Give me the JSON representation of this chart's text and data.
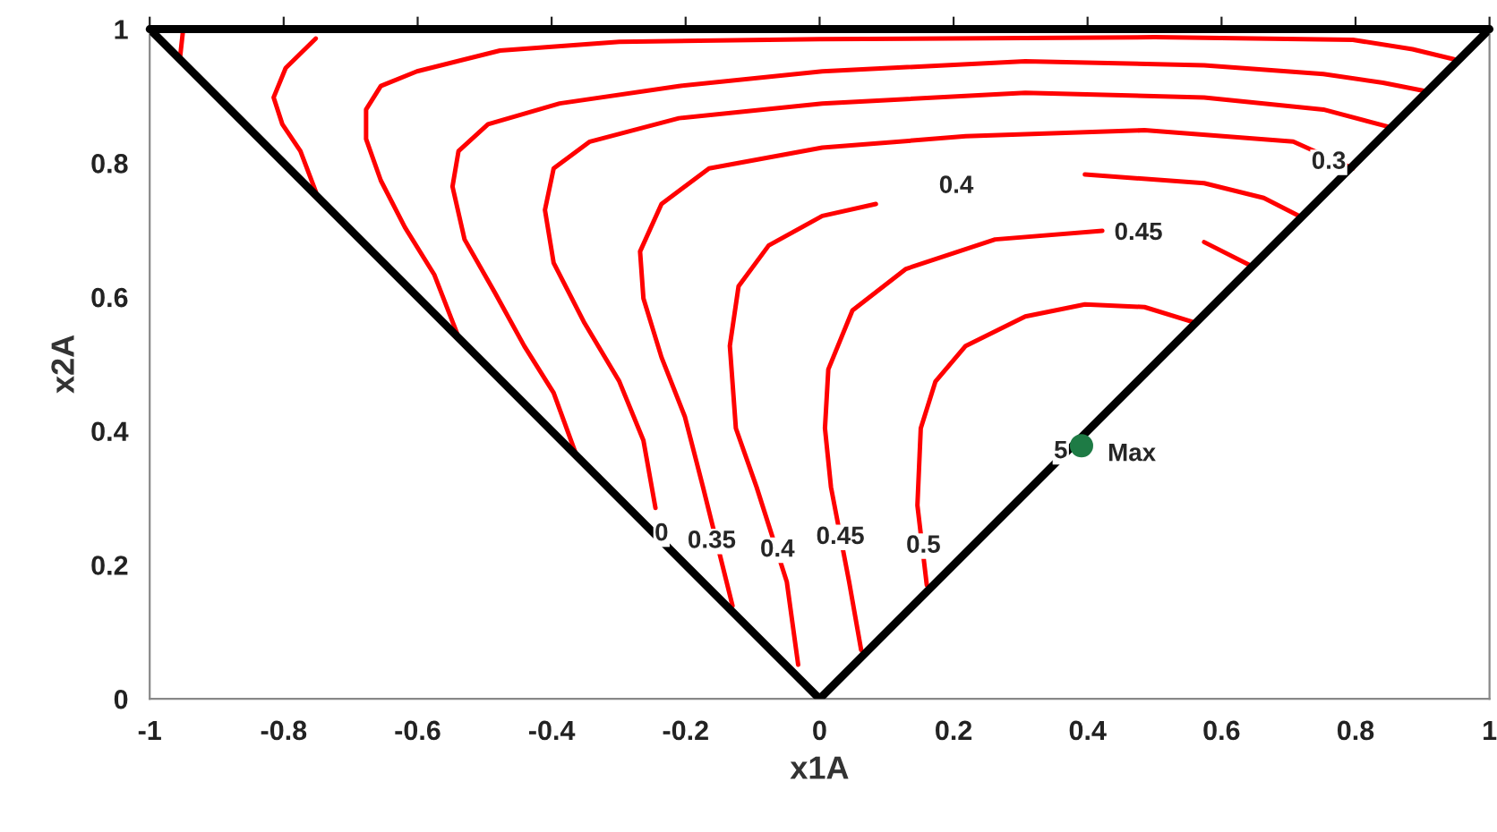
{
  "chart_data": {
    "type": "line",
    "xlabel": "x1A",
    "ylabel": "x2A",
    "xlim": [
      -1,
      1
    ],
    "ylim": [
      0,
      1
    ],
    "xticks": [
      {
        "value": -1,
        "label": "-1"
      },
      {
        "value": -0.8,
        "label": "-0.8"
      },
      {
        "value": -0.6,
        "label": "-0.6"
      },
      {
        "value": -0.4,
        "label": "-0.4"
      },
      {
        "value": -0.2,
        "label": "-0.2"
      },
      0,
      0.2,
      0.4,
      0.6,
      0.8,
      1
    ],
    "yticks": [
      0,
      0.2,
      0.4,
      0.6,
      0.8,
      1
    ],
    "grid": false,
    "legend": false,
    "line_style": "solid",
    "ref_lines": [
      {
        "axis": "y",
        "value": 1,
        "color": "#000000"
      }
    ],
    "series": [
      {
        "color": "#ff0000",
        "x": [
          -0.95,
          -0.955
        ],
        "values": [
          1,
          0.955
        ]
      },
      {
        "color": "#ff0000",
        "x": [
          -0.752,
          -0.797,
          -0.815,
          -0.802,
          -0.775,
          -0.752
        ],
        "values": [
          0.986,
          0.942,
          0.898,
          0.858,
          0.818,
          0.757
        ]
      },
      {
        "color": "#ff0000",
        "x": [
          -0.539,
          -0.575,
          -0.619,
          -0.655,
          -0.677,
          -0.677,
          -0.655,
          -0.601,
          -0.477,
          -0.299,
          0,
          0.5,
          0.796,
          0.885,
          0.947
        ],
        "values": [
          0.54,
          0.633,
          0.704,
          0.774,
          0.836,
          0.88,
          0.915,
          0.937,
          0.968,
          0.981,
          0.985,
          0.988,
          0.984,
          0.97,
          0.955
        ]
      },
      {
        "color": "#ff0000",
        "x": [
          -0.365,
          -0.397,
          -0.441,
          -0.485,
          -0.53,
          -0.548,
          -0.539,
          -0.495,
          -0.388,
          -0.21,
          0.004,
          0.307,
          0.574,
          0.752,
          0.841,
          0.907
        ],
        "values": [
          0.369,
          0.457,
          0.527,
          0.607,
          0.686,
          0.765,
          0.818,
          0.858,
          0.889,
          0.915,
          0.937,
          0.952,
          0.946,
          0.933,
          0.92,
          0.907
        ]
      },
      {
        "color": "#ff0000",
        "x": [
          -0.245,
          -0.263,
          -0.299,
          -0.352,
          -0.397,
          -0.41,
          -0.397,
          -0.343,
          -0.21,
          0.004,
          0.307,
          0.574,
          0.752,
          0.85
        ],
        "values": [
          0.285,
          0.386,
          0.474,
          0.563,
          0.651,
          0.73,
          0.792,
          0.832,
          0.867,
          0.889,
          0.905,
          0.898,
          0.88,
          0.854
        ]
      },
      {
        "color": "#ff0000",
        "x": [
          -0.13,
          -0.174,
          -0.201,
          -0.236,
          -0.263,
          -0.268,
          -0.236,
          -0.165,
          0.004,
          0.218,
          0.485,
          0.707,
          0.796
        ],
        "values": [
          0.139,
          0.316,
          0.421,
          0.51,
          0.598,
          0.668,
          0.739,
          0.792,
          0.823,
          0.84,
          0.849,
          0.832,
          0.792
        ]
      },
      {
        "color": "#ff0000",
        "x": [
          -0.032,
          -0.049,
          -0.094,
          -0.125,
          -0.134,
          -0.121,
          -0.076,
          0.004,
          0.084,
          0.2,
          0.396,
          0.574,
          0.663,
          0.716
        ],
        "values": [
          0.051,
          0.175,
          0.316,
          0.404,
          0.527,
          0.616,
          0.677,
          0.721,
          0.739,
          null,
          0.783,
          0.77,
          0.748,
          0.721
        ]
      },
      {
        "color": "#ff0000",
        "x": [
          0.062,
          0.044,
          0.017,
          0.008,
          0.013,
          0.049,
          0.129,
          0.262,
          0.422,
          0.485,
          0.574,
          0.645
        ],
        "values": [
          0.073,
          0.175,
          0.316,
          0.404,
          0.492,
          0.58,
          0.642,
          0.686,
          0.699,
          null,
          0.682,
          0.646
        ]
      },
      {
        "color": "#ff0000",
        "x": [
          0.16,
          0.146,
          0.151,
          0.173,
          0.218,
          0.307,
          0.396,
          0.485,
          0.556
        ],
        "values": [
          0.17,
          0.289,
          0.404,
          0.474,
          0.527,
          0.571,
          0.589,
          0.585,
          0.563
        ]
      },
      {
        "color": "#000000",
        "x": [
          -1,
          0,
          1
        ],
        "values": [
          1,
          0,
          1
        ]
      },
      {
        "type": "scatter",
        "color": "#1e7b45",
        "x": [
          0.391
        ],
        "values": [
          0.378
        ]
      }
    ],
    "annotations": [
      {
        "text": "0",
        "x": -0.236,
        "y": 0.246
      },
      {
        "text": "0.35",
        "x": -0.161,
        "y": 0.235
      },
      {
        "text": "0.4",
        "x": -0.063,
        "y": 0.222
      },
      {
        "text": "0.45",
        "x": 0.031,
        "y": 0.241
      },
      {
        "text": "0.5",
        "x": 0.155,
        "y": 0.228
      },
      {
        "text": "0.4",
        "x": 0.204,
        "y": 0.765
      },
      {
        "text": "0.45",
        "x": 0.476,
        "y": 0.695
      },
      {
        "text": "0.3",
        "x": 0.76,
        "y": 0.801
      },
      {
        "text": "5",
        "x": 0.36,
        "y": 0.369
      },
      {
        "text": "Max",
        "x": 0.466,
        "y": 0.365
      }
    ]
  }
}
